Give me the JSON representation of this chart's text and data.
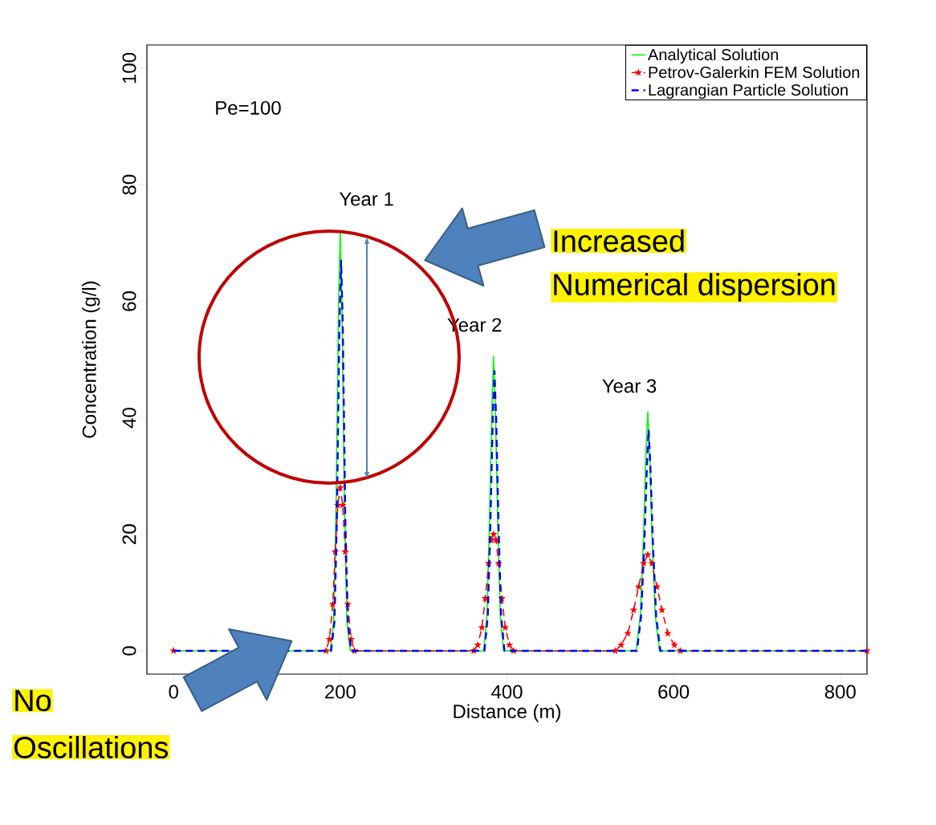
{
  "chart_data": {
    "type": "line",
    "xlabel": "Distance (m)",
    "ylabel": "Concentration (g/l)",
    "xlim": [
      -32,
      832
    ],
    "ylim": [
      -4,
      104
    ],
    "xticks": [
      0,
      200,
      400,
      600,
      800
    ],
    "yticks": [
      0,
      20,
      40,
      60,
      80,
      100
    ],
    "legend": "top right",
    "series": [
      {
        "name": "Analytical Solution",
        "color": "#00ff00",
        "line_style": "solid",
        "x": [
          0,
          188,
          192,
          195,
          198,
          200,
          202,
          205,
          208,
          212,
          372,
          376,
          379,
          382,
          384,
          386,
          389,
          392,
          396,
          555,
          560,
          564,
          567,
          569,
          571,
          574,
          578,
          583,
          832
        ],
        "values": [
          0,
          0,
          5,
          25,
          60,
          72,
          60,
          25,
          5,
          0,
          0,
          6,
          22,
          42,
          50.5,
          42,
          22,
          6,
          0,
          0,
          6,
          20,
          35,
          41,
          35,
          20,
          6,
          0,
          0
        ]
      },
      {
        "name": "Petrov-Galerkin FEM Solution",
        "color": "#ff0000",
        "line_style": "dashed",
        "marker": "star",
        "x": [
          0,
          183,
          187,
          191,
          194,
          197,
          200,
          203,
          206,
          209,
          213,
          217,
          360,
          365,
          370,
          374,
          378,
          381,
          384,
          387,
          390,
          394,
          398,
          403,
          408,
          530,
          537,
          545,
          552,
          558,
          564,
          569,
          574,
          580,
          586,
          593,
          601,
          608,
          832
        ],
        "values": [
          0,
          0,
          2,
          8,
          17,
          25,
          28,
          25,
          17,
          8,
          2,
          0,
          0,
          1,
          4,
          9,
          15,
          19,
          20,
          19,
          15,
          9,
          4,
          1,
          0,
          0,
          1,
          3,
          7,
          11,
          15,
          16.5,
          15,
          11,
          7,
          3,
          1,
          0,
          0
        ]
      },
      {
        "name": "Lagrangian Particle Solution",
        "color": "#0000ff",
        "line_style": "dashed",
        "x": [
          0,
          189,
          193,
          196,
          199,
          201,
          203,
          206,
          209,
          213,
          373,
          377,
          380,
          383,
          385,
          387,
          390,
          393,
          397,
          556,
          561,
          565,
          568,
          570,
          572,
          575,
          579,
          584,
          832
        ],
        "values": [
          0,
          0,
          5,
          23,
          56,
          67,
          56,
          23,
          5,
          0,
          0,
          6,
          21,
          40,
          48,
          40,
          21,
          6,
          0,
          0,
          6,
          19,
          32,
          38,
          32,
          19,
          6,
          0,
          0
        ]
      }
    ],
    "annotations": [
      "Pe=100",
      "Year 1",
      "Year 2",
      "Year 3",
      "Increased",
      "Numerical dispersion",
      "No",
      "Oscillations"
    ]
  }
}
